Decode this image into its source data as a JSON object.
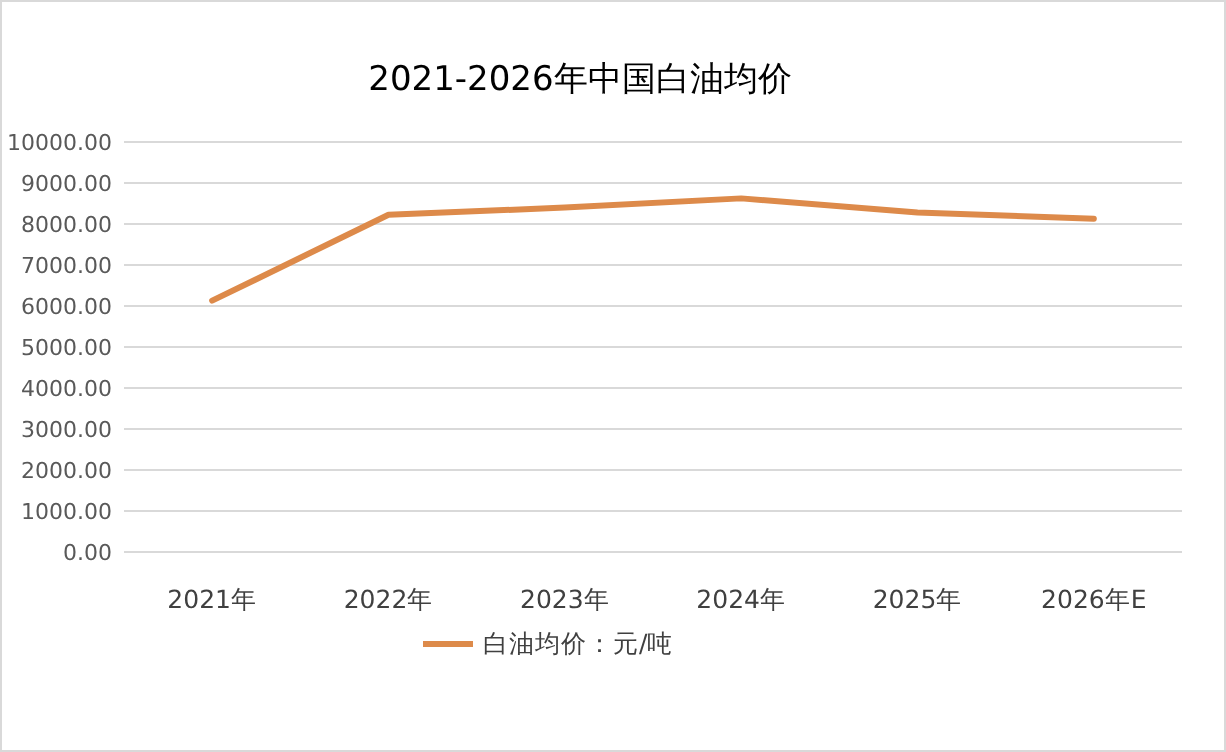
{
  "chart_data": {
    "type": "line",
    "title": "2021-2026年中国白油均价",
    "categories": [
      "2021年",
      "2022年",
      "2023年",
      "2024年",
      "2025年",
      "2026年E"
    ],
    "series": [
      {
        "name": "白油均价：元/吨",
        "color": "#dd8a4a",
        "values": [
          6130,
          8225,
          8400,
          8625,
          8280,
          8130
        ]
      }
    ],
    "ylim": [
      0,
      10000
    ],
    "yticks": [
      {
        "value": 0,
        "label": "0.00"
      },
      {
        "value": 1000,
        "label": "1000.00"
      },
      {
        "value": 2000,
        "label": "2000.00"
      },
      {
        "value": 3000,
        "label": "3000.00"
      },
      {
        "value": 4000,
        "label": "4000.00"
      },
      {
        "value": 5000,
        "label": "5000.00"
      },
      {
        "value": 6000,
        "label": "6000.00"
      },
      {
        "value": 7000,
        "label": "7000.00"
      },
      {
        "value": 8000,
        "label": "8000.00"
      },
      {
        "value": 9000,
        "label": "9000.00"
      },
      {
        "value": 10000,
        "label": "10000.00"
      }
    ],
    "grid": "y",
    "legend": "bottom",
    "marker": "none",
    "line_style": "solid"
  }
}
